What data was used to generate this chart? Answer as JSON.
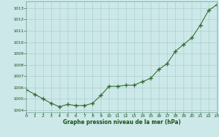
{
  "x": [
    0,
    1,
    2,
    3,
    4,
    5,
    6,
    7,
    8,
    9,
    10,
    11,
    12,
    13,
    14,
    15,
    16,
    17,
    18,
    19,
    20,
    21,
    22,
    23
  ],
  "y": [
    1005.8,
    1005.4,
    1005.0,
    1004.6,
    1004.3,
    1004.5,
    1004.4,
    1004.4,
    1004.6,
    1005.3,
    1006.1,
    1006.1,
    1006.2,
    1006.2,
    1006.5,
    1006.8,
    1007.6,
    1008.1,
    1009.2,
    1009.8,
    1010.4,
    1011.5,
    1012.8,
    1013.3
  ],
  "line_color": "#2d6a2d",
  "marker": "+",
  "bg_color": "#cce8e8",
  "grid_color": "#aacece",
  "xlabel": "Graphe pression niveau de la mer (hPa)",
  "xlabel_color": "#1a4d1a",
  "tick_color": "#1a4d1a",
  "ylim": [
    1003.8,
    1013.6
  ],
  "xlim": [
    0,
    23
  ],
  "yticks": [
    1004,
    1005,
    1006,
    1007,
    1008,
    1009,
    1010,
    1011,
    1012,
    1013
  ],
  "xticks": [
    0,
    1,
    2,
    3,
    4,
    5,
    6,
    7,
    8,
    9,
    10,
    11,
    12,
    13,
    14,
    15,
    16,
    17,
    18,
    19,
    20,
    21,
    22,
    23
  ],
  "linewidth": 0.8,
  "markersize": 4,
  "spine_color": "#7aaa9a"
}
